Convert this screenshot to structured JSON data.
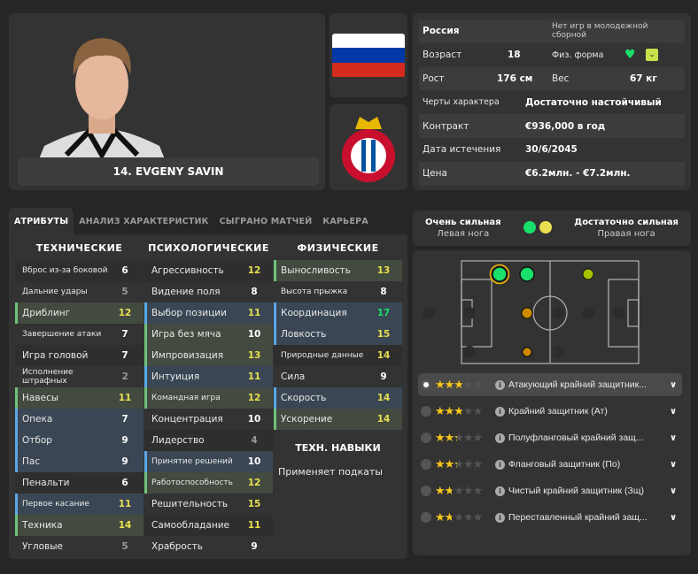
{
  "player": {
    "name": "14. EVGENY SAVIN"
  },
  "info": {
    "nation": "Россия",
    "youth_caps": "Нет игр в молодежной сборной",
    "age_label": "Возраст",
    "age": "18",
    "fitness_label": "Физ. форма",
    "height_label": "Рост",
    "height": "176 см",
    "weight_label": "Вес",
    "weight": "67 кг",
    "personality_label": "Черты характера",
    "personality": "Достаточно настойчивый",
    "contract_label": "Контракт",
    "contract": "€936,000 в год",
    "expiry_label": "Дата истечения",
    "expiry": "30/6/2045",
    "value_label": "Цена",
    "value": "€6.2млн. - €7.2млн."
  },
  "colors": {
    "flag": [
      "#ffffff",
      "#0039a6",
      "#d52b1e"
    ],
    "green": "#19e06a",
    "yellow": "#f5c518",
    "attr_green": "#6fc27a",
    "attr_blue": "#5aa7e8"
  },
  "tabs": [
    "АТРИБУТЫ",
    "АНАЛИЗ ХАРАКТЕРИСТИК",
    "СЫГРАНО МАТЧЕЙ",
    "КАРЬЕРА"
  ],
  "attributes": {
    "technical": {
      "title": "ТЕХНИЧЕСКИЕ",
      "items": [
        {
          "name": "Вброс из-за боковой",
          "value": "6"
        },
        {
          "name": "Дальние удары",
          "value": "5"
        },
        {
          "name": "Дриблинг",
          "value": "12"
        },
        {
          "name": "Завершение атаки",
          "value": "7"
        },
        {
          "name": "Игра головой",
          "value": "7"
        },
        {
          "name": "Исполнение штрафных",
          "value": "2"
        },
        {
          "name": "Навесы",
          "value": "11"
        },
        {
          "name": "Опека",
          "value": "7"
        },
        {
          "name": "Отбор",
          "value": "9"
        },
        {
          "name": "Пас",
          "value": "9"
        },
        {
          "name": "Пенальти",
          "value": "6"
        },
        {
          "name": "Первое касание",
          "value": "11"
        },
        {
          "name": "Техника",
          "value": "14"
        },
        {
          "name": "Угловые",
          "value": "5"
        }
      ]
    },
    "mental": {
      "title": "ПСИХОЛОГИЧЕСКИЕ",
      "items": [
        {
          "name": "Агрессивность",
          "value": "12"
        },
        {
          "name": "Видение поля",
          "value": "8"
        },
        {
          "name": "Выбор позиции",
          "value": "11"
        },
        {
          "name": "Игра без мяча",
          "value": "10"
        },
        {
          "name": "Импровизация",
          "value": "13"
        },
        {
          "name": "Интуиция",
          "value": "11"
        },
        {
          "name": "Командная игра",
          "value": "12"
        },
        {
          "name": "Концентрация",
          "value": "10"
        },
        {
          "name": "Лидерство",
          "value": "4"
        },
        {
          "name": "Принятие решений",
          "value": "10"
        },
        {
          "name": "Работоспособность",
          "value": "12"
        },
        {
          "name": "Решительность",
          "value": "15"
        },
        {
          "name": "Самообладание",
          "value": "11"
        },
        {
          "name": "Храбрость",
          "value": "9"
        }
      ]
    },
    "physical": {
      "title": "ФИЗИЧЕСКИЕ",
      "items": [
        {
          "name": "Выносливость",
          "value": "13"
        },
        {
          "name": "Высота прыжка",
          "value": "8"
        },
        {
          "name": "Координация",
          "value": "17"
        },
        {
          "name": "Ловкость",
          "value": "15"
        },
        {
          "name": "Природные данные",
          "value": "14"
        },
        {
          "name": "Сила",
          "value": "9"
        },
        {
          "name": "Скорость",
          "value": "14"
        },
        {
          "name": "Ускорение",
          "value": "14"
        }
      ]
    },
    "skills_title": "ТЕХН. НАВЫКИ",
    "skills": [
      "Применяет подкаты"
    ]
  },
  "feet": {
    "left_level": "Очень сильная",
    "left_label": "Левая нога",
    "right_level": "Достаточно сильная",
    "right_label": "Правая нога"
  },
  "roles": [
    {
      "label": "Атакующий крайний защитник...",
      "stars": 2.5,
      "selected": true
    },
    {
      "label": "Крайний защитник (Ат)",
      "stars": 2.5
    },
    {
      "label": "Полуфланговый крайний защ...",
      "stars": 2
    },
    {
      "label": "Фланговый защитник (По)",
      "stars": 2
    },
    {
      "label": "Чистый крайний защитник (Зщ)",
      "stars": 1.5
    },
    {
      "label": "Переставленный крайний защ...",
      "stars": 1.5
    }
  ]
}
